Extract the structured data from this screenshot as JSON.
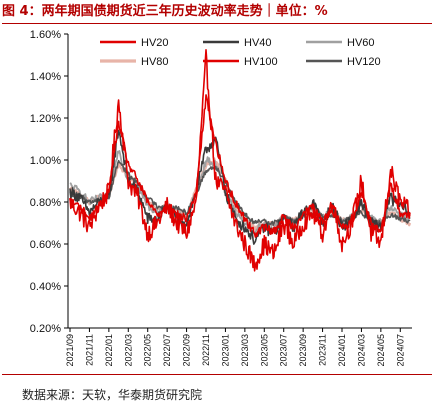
{
  "title": "图 4：两年期国债期货近三年历史波动率走势｜单位：%",
  "source": "数据来源：天软，华泰期货研究院",
  "chart_data": {
    "type": "line",
    "title": "两年期国债期货近三年历史波动率走势",
    "ylabel": "",
    "xlabel": "",
    "ylim": [
      0.002,
      0.016
    ],
    "yticks": [
      "0.20%",
      "0.40%",
      "0.60%",
      "0.80%",
      "1.00%",
      "1.20%",
      "1.40%",
      "1.60%"
    ],
    "xticks": [
      "2021/09",
      "2021/11",
      "2022/01",
      "2022/03",
      "2022/05",
      "2022/07",
      "2022/09",
      "2022/11",
      "2023/01",
      "2023/03",
      "2023/05",
      "2023/07",
      "2023/09",
      "2023/11",
      "2024/01",
      "2024/03",
      "2024/05",
      "2024/07"
    ],
    "legend_position": "top",
    "grid": false,
    "x_months": [
      "2021/09",
      "2021/10",
      "2021/11",
      "2021/12",
      "2022/01",
      "2022/02",
      "2022/03",
      "2022/04",
      "2022/05",
      "2022/06",
      "2022/07",
      "2022/08",
      "2022/09",
      "2022/10",
      "2022/11",
      "2022/12",
      "2023/01",
      "2023/02",
      "2023/03",
      "2023/04",
      "2023/05",
      "2023/06",
      "2023/07",
      "2023/08",
      "2023/09",
      "2023/10",
      "2023/11",
      "2023/12",
      "2024/01",
      "2024/02",
      "2024/03",
      "2024/04",
      "2024/05",
      "2024/06",
      "2024/07",
      "2024/08"
    ],
    "series": [
      {
        "name": "HV20",
        "color": "#e00000",
        "width": 1.6,
        "values": [
          0.008,
          0.0075,
          0.0068,
          0.0078,
          0.0085,
          0.0128,
          0.009,
          0.0082,
          0.0065,
          0.007,
          0.0078,
          0.007,
          0.0065,
          0.008,
          0.0148,
          0.009,
          0.0085,
          0.007,
          0.006,
          0.005,
          0.006,
          0.0055,
          0.007,
          0.006,
          0.007,
          0.0075,
          0.0065,
          0.008,
          0.006,
          0.007,
          0.009,
          0.0065,
          0.006,
          0.0095,
          0.008,
          0.0075
        ]
      },
      {
        "name": "HV40",
        "color": "#3a3a3a",
        "width": 1.6,
        "values": [
          0.0085,
          0.0082,
          0.0075,
          0.008,
          0.0082,
          0.0115,
          0.009,
          0.0085,
          0.0072,
          0.0072,
          0.0078,
          0.0072,
          0.007,
          0.0085,
          0.0105,
          0.011,
          0.0085,
          0.0072,
          0.0068,
          0.0062,
          0.0068,
          0.0065,
          0.0072,
          0.0068,
          0.0075,
          0.008,
          0.007,
          0.0078,
          0.0068,
          0.0072,
          0.008,
          0.007,
          0.0068,
          0.0082,
          0.0078,
          0.0075
        ]
      },
      {
        "name": "HV60",
        "color": "#a0a0a0",
        "width": 1.8,
        "values": [
          0.0088,
          0.0085,
          0.008,
          0.0082,
          0.0082,
          0.0105,
          0.009,
          0.0087,
          0.0078,
          0.0075,
          0.0078,
          0.0075,
          0.0072,
          0.0085,
          0.01,
          0.0098,
          0.0085,
          0.0075,
          0.007,
          0.0066,
          0.007,
          0.0068,
          0.0073,
          0.007,
          0.0075,
          0.0078,
          0.0072,
          0.0077,
          0.007,
          0.0073,
          0.0078,
          0.0072,
          0.007,
          0.0078,
          0.0074,
          0.0072
        ]
      },
      {
        "name": "HV80",
        "color": "#e8b4a8",
        "width": 2.4,
        "values": [
          0.0086,
          0.0084,
          0.008,
          0.0082,
          0.0083,
          0.0098,
          0.0092,
          0.0088,
          0.008,
          0.0076,
          0.0078,
          0.0076,
          0.0074,
          0.0086,
          0.0098,
          0.01,
          0.009,
          0.0078,
          0.0072,
          0.0068,
          0.007,
          0.0069,
          0.0073,
          0.0071,
          0.0074,
          0.0077,
          0.0073,
          0.0075,
          0.0071,
          0.0072,
          0.0076,
          0.0071,
          0.007,
          0.0075,
          0.0072,
          0.007
        ]
      },
      {
        "name": "HV100",
        "color": "#e00000",
        "width": 1.6,
        "values": [
          0.008,
          0.0078,
          0.0072,
          0.0078,
          0.0085,
          0.0118,
          0.0098,
          0.009,
          0.008,
          0.0074,
          0.0078,
          0.0074,
          0.0072,
          0.0085,
          0.013,
          0.0108,
          0.009,
          0.008,
          0.0072,
          0.0065,
          0.0068,
          0.0066,
          0.0073,
          0.0068,
          0.0074,
          0.0078,
          0.007,
          0.0078,
          0.0068,
          0.007,
          0.0085,
          0.007,
          0.0066,
          0.0088,
          0.0075,
          0.0074
        ]
      },
      {
        "name": "HV120",
        "color": "#555555",
        "width": 1.6,
        "values": [
          0.0084,
          0.0083,
          0.008,
          0.0081,
          0.0082,
          0.01,
          0.0093,
          0.0089,
          0.0082,
          0.0078,
          0.0078,
          0.0077,
          0.0075,
          0.0084,
          0.0095,
          0.0097,
          0.009,
          0.008,
          0.0074,
          0.007,
          0.0071,
          0.007,
          0.0073,
          0.0071,
          0.0073,
          0.0075,
          0.0073,
          0.0074,
          0.0071,
          0.0072,
          0.0075,
          0.0071,
          0.007,
          0.0074,
          0.0072,
          0.0071
        ]
      }
    ]
  }
}
